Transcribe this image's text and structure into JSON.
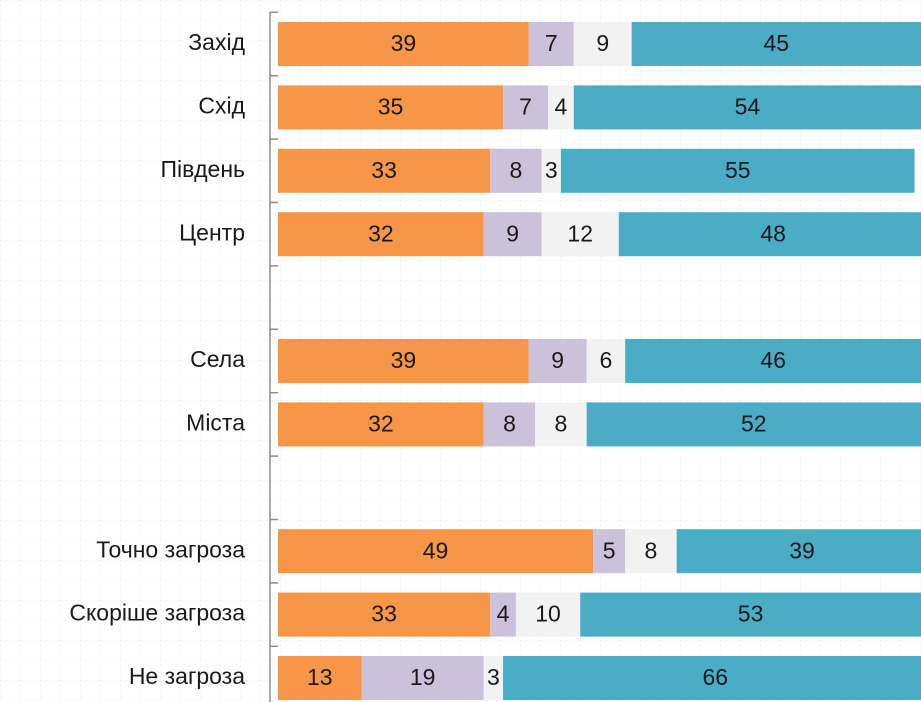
{
  "chart_data": {
    "type": "stacked-bar-horizontal",
    "categories": [
      "Захід",
      "Схід",
      "Південь",
      "Центр",
      null,
      "Села",
      "Міста",
      null,
      "Точно загроза",
      "Скоріше загроза",
      "Не загроза"
    ],
    "series": [
      {
        "color": "#f79646",
        "values": [
          39,
          35,
          33,
          32,
          null,
          39,
          32,
          null,
          49,
          33,
          13
        ]
      },
      {
        "color": "#ccc1da",
        "values": [
          7,
          7,
          8,
          9,
          null,
          9,
          8,
          null,
          5,
          4,
          19
        ]
      },
      {
        "color": "#f2f2f2",
        "values": [
          9,
          4,
          3,
          12,
          null,
          6,
          8,
          null,
          8,
          10,
          3
        ]
      },
      {
        "color": "#4bacc6",
        "values": [
          45,
          54,
          55,
          48,
          null,
          46,
          52,
          null,
          39,
          53,
          66
        ]
      }
    ],
    "xlim": [
      0,
      100
    ]
  }
}
